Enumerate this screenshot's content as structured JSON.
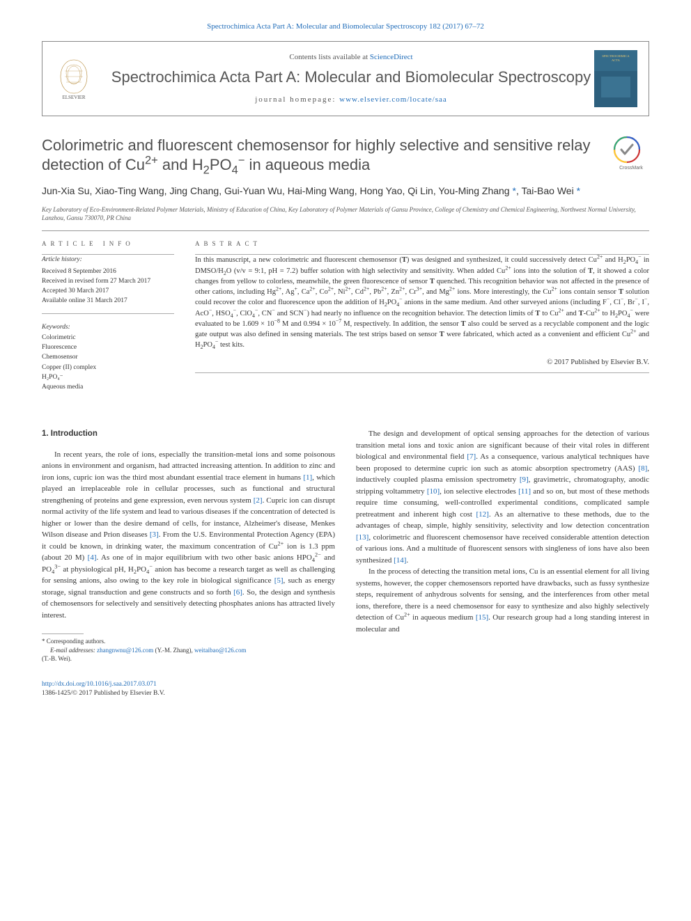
{
  "journal_ref_line": "Spectrochimica Acta Part A: Molecular and Biomolecular Spectroscopy 182 (2017) 67–72",
  "header": {
    "contents_prefix": "Contents lists available at ",
    "contents_link": "ScienceDirect",
    "journal_name": "Spectrochimica Acta Part A: Molecular and Biomolecular Spectroscopy",
    "homepage_prefix": "journal homepage: ",
    "homepage_link": "www.elsevier.com/locate/saa"
  },
  "article": {
    "title_html": "Colorimetric and fluorescent chemosensor for highly selective and sensitive relay detection of Cu<sup>2+</sup> and H<sub>2</sub>PO<sub>4</sub><sup>−</sup> in aqueous media",
    "authors_html": "Jun-Xia Su, Xiao-Ting Wang, Jing Chang, Gui-Yuan Wu, Hai-Ming Wang, Hong Yao, Qi Lin, You-Ming Zhang <span class=\"star\">*</span>, Tai-Bao Wei <span class=\"star\">*</span>",
    "affiliation": "Key Laboratory of Eco-Environment-Related Polymer Materials, Ministry of Education of China, Key Laboratory of Polymer Materials of Gansu Province, College of Chemistry and Chemical Engineering, Northwest Normal University, Lanzhou, Gansu 730070, PR China"
  },
  "info": {
    "heading": "ARTICLE INFO",
    "history_label": "Article history:",
    "history": [
      "Received 8 September 2016",
      "Received in revised form 27 March 2017",
      "Accepted 30 March 2017",
      "Available online 31 March 2017"
    ],
    "keywords_label": "Keywords:",
    "keywords": [
      "Colorimetric",
      "Fluorescence",
      "Chemosensor",
      "Copper (II) complex",
      "H₂PO₄⁻",
      "Aqueous media"
    ]
  },
  "abstract": {
    "heading": "ABSTRACT",
    "text_html": "In this manuscript, a new colorimetric and fluorescent chemosensor (<b>T</b>) was designed and synthesized, it could successively detect Cu<sup>2+</sup> and H<sub>2</sub>PO<sub>4</sub><sup>−</sup> in DMSO/H<sub>2</sub>O (v/v = 9:1, pH = 7.2) buffer solution with high selectivity and sensitivity. When added Cu<sup>2+</sup> ions into the solution of <b>T</b>, it showed a color changes from yellow to colorless, meanwhile, the green fluorescence of sensor <b>T</b> quenched. This recognition behavior was not affected in the presence of other cations, including Hg<sup>2+</sup>, Ag<sup>+</sup>, Ca<sup>2+</sup>, Co<sup>2+</sup>, Ni<sup>2+</sup>, Cd<sup>2+</sup>, Pb<sup>2+</sup>, Zn<sup>2+</sup>, Cr<sup>3+</sup>, and Mg<sup>2+</sup> ions. More interestingly, the Cu<sup>2+</sup> ions contain sensor <b>T</b> solution could recover the color and fluorescence upon the addition of H<sub>2</sub>PO<sub>4</sub><sup>−</sup> anions in the same medium. And other surveyed anions (including F<sup>−</sup>, Cl<sup>−</sup>, Br<sup>−</sup>, I<sup>−</sup>, AcO<sup>−</sup>, HSO<sub>4</sub><sup>−</sup>, ClO<sub>4</sub><sup>−</sup>, CN<sup>−</sup> and SCN<sup>−</sup>) had nearly no influence on the recognition behavior. The detection limits of <b>T</b> to Cu<sup>2+</sup> and <b>T</b>-Cu<sup>2+</sup> to H<sub>2</sub>PO<sub>4</sub><sup>−</sup> were evaluated to be 1.609 × 10<sup>−8</sup> M and 0.994 × 10<sup>−7</sup> M, respectively. In addition, the sensor <b>T</b> also could be served as a recyclable component and the logic gate output was also defined in sensing materials. The test strips based on sensor <b>T</b> were fabricated, which acted as a convenient and efficient Cu<sup>2+</sup> and H<sub>2</sub>PO<sub>4</sub><sup>−</sup> test kits.",
    "copyright": "© 2017 Published by Elsevier B.V."
  },
  "body": {
    "intro_heading": "1. Introduction",
    "p1_html": "In recent years, the role of ions, especially the transition-metal ions and some poisonous anions in environment and organism, had attracted increasing attention. In addition to zinc and iron ions, cupric ion was the third most abundant essential trace element in humans <span class=\"ref\">[1]</span>, which played an irreplaceable role in cellular processes, such as functional and structural strengthening of proteins and gene expression, even nervous system <span class=\"ref\">[2]</span>. Cupric ion can disrupt normal activity of the life system and lead to various diseases if the concentration of detected is higher or lower than the desire demand of cells, for instance, Alzheimer's disease, Menkes Wilson disease and Prion diseases <span class=\"ref\">[3]</span>. From the U.S. Environmental Protection Agency (EPA) it could be known, in drinking water, the maximum concentration of Cu<sup>2+</sup> ion is 1.3 ppm (about 20 M) <span class=\"ref\">[4]</span>. As one of in major equilibrium with two other basic anions HPO<sub>4</sub><sup>2−</sup> and PO<sub>4</sub><sup>3−</sup> at physiological pH, H<sub>2</sub>PO<sub>4</sub><sup>−</sup> anion has become a research target as well as challenging for sensing anions, also owing to the key role in biological significance <span class=\"ref\">[5]</span>, such as energy storage, signal transduction and gene constructs and so forth <span class=\"ref\">[6]</span>. So, the design and synthesis of chemosensors for selectively and sensitively detecting phosphates anions has attracted lively interest.",
    "p2_html": "The design and development of optical sensing approaches for the detection of various transition metal ions and toxic anion are significant because of their vital roles in different biological and environmental field <span class=\"ref\">[7]</span>. As a consequence, various analytical techniques have been proposed to determine cupric ion such as atomic absorption spectrometry (AAS) <span class=\"ref\">[8]</span>, inductively coupled plasma emission spectrometry <span class=\"ref\">[9]</span>, gravimetric, chromatography, anodic stripping voltammetry <span class=\"ref\">[10]</span>, ion selective electrodes <span class=\"ref\">[11]</span> and so on, but most of these methods require time consuming, well-controlled experimental conditions, complicated sample pretreatment and inherent high cost <span class=\"ref\">[12]</span>. As an alternative to these methods, due to the advantages of cheap, simple, highly sensitivity, selectivity and low detection concentration <span class=\"ref\">[13]</span>, colorimetric and fluorescent chemosensor have received considerable attention detection of various ions. And a multitude of fluorescent sensors with singleness of ions have also been synthesized <span class=\"ref\">[14]</span>.",
    "p3_html": "In the process of detecting the transition metal ions, Cu is an essential element for all living systems, however, the copper chemosensors reported have drawbacks, such as fussy synthesize steps, requirement of anhydrous solvents for sensing, and the interferences from other metal ions, therefore, there is a need chemosensor for easy to synthesize and also highly selectively detection of Cu<sup>2+</sup> in aqueous medium <span class=\"ref\">[15]</span>. Our research group had a long standing interest in molecular and"
  },
  "footnotes": {
    "corresp": "* Corresponding authors.",
    "emails_label": "E-mail addresses:",
    "email1": "zhangnwnu@126.com",
    "email1_name": "(Y.-M. Zhang),",
    "email2": "weitaibao@126.com",
    "email2_name": "(T.-B. Wei)."
  },
  "footer": {
    "doi": "http://dx.doi.org/10.1016/j.saa.2017.03.071",
    "issn_line": "1386-1425/© 2017 Published by Elsevier B.V."
  },
  "colors": {
    "link": "#1e6bb8",
    "text": "#333333",
    "heading_gray": "#4d4d4d",
    "border": "#888888"
  }
}
